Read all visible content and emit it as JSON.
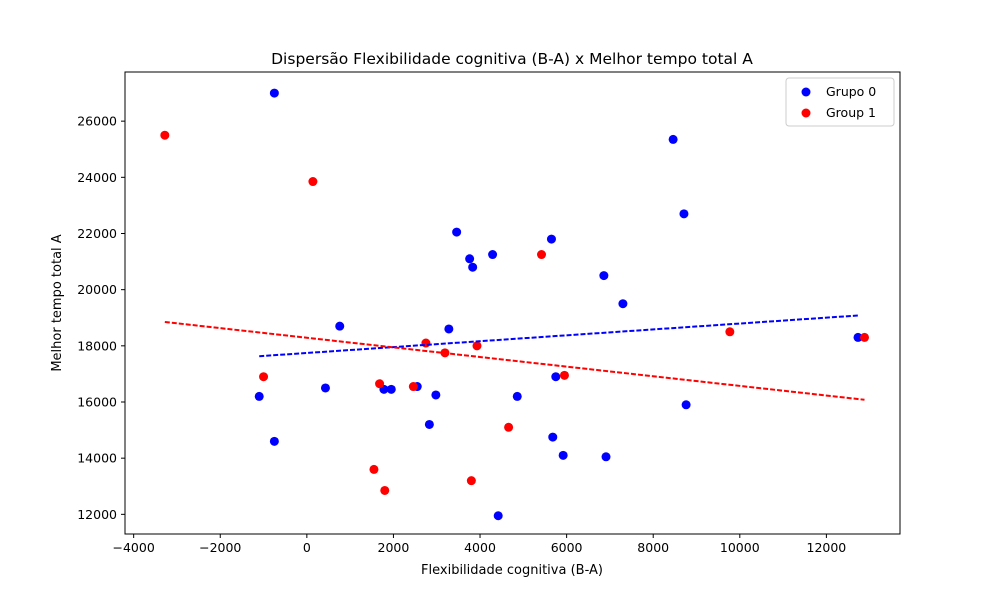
{
  "chart_data": {
    "type": "scatter",
    "title": "Dispersão Flexibilidade cognitiva (B-A) x Melhor tempo total A",
    "xlabel": "Flexibilidade cognitiva (B-A)",
    "ylabel": "Melhor tempo total A",
    "xlim": [
      -4200,
      13700
    ],
    "ylim": [
      11300,
      27750
    ],
    "xticks": [
      -4000,
      -2000,
      0,
      2000,
      4000,
      6000,
      8000,
      10000,
      12000
    ],
    "yticks": [
      12000,
      14000,
      16000,
      18000,
      20000,
      22000,
      24000,
      26000
    ],
    "grid": false,
    "legend_position": "top-right",
    "series": [
      {
        "name": "Grupo 0",
        "color": "#0000ff",
        "points": [
          [
            -750,
            27000
          ],
          [
            -1100,
            16200
          ],
          [
            -750,
            14600
          ],
          [
            430,
            16500
          ],
          [
            760,
            18700
          ],
          [
            1780,
            16450
          ],
          [
            1950,
            16450
          ],
          [
            2550,
            16550
          ],
          [
            2830,
            15200
          ],
          [
            2980,
            16250
          ],
          [
            3280,
            18600
          ],
          [
            3460,
            22050
          ],
          [
            3760,
            21100
          ],
          [
            3830,
            20800
          ],
          [
            4290,
            21250
          ],
          [
            4420,
            11950
          ],
          [
            4860,
            16200
          ],
          [
            5650,
            21800
          ],
          [
            5680,
            14750
          ],
          [
            5750,
            16900
          ],
          [
            5920,
            14100
          ],
          [
            6860,
            20500
          ],
          [
            6910,
            14050
          ],
          [
            7300,
            19500
          ],
          [
            8460,
            25350
          ],
          [
            8710,
            22700
          ],
          [
            8760,
            15900
          ],
          [
            12730,
            18300
          ]
        ],
        "trendline": {
          "x": [
            -1100,
            12730
          ],
          "y": [
            17630,
            19080
          ]
        }
      },
      {
        "name": "Group 1",
        "color": "#ff0000",
        "points": [
          [
            -3280,
            25500
          ],
          [
            -1000,
            16900
          ],
          [
            140,
            23850
          ],
          [
            1550,
            13600
          ],
          [
            1680,
            16650
          ],
          [
            1800,
            12850
          ],
          [
            2460,
            16550
          ],
          [
            2750,
            18100
          ],
          [
            3190,
            17750
          ],
          [
            3800,
            13200
          ],
          [
            3930,
            18000
          ],
          [
            4660,
            15100
          ],
          [
            5420,
            21250
          ],
          [
            5950,
            16950
          ],
          [
            9770,
            18500
          ],
          [
            12880,
            18300
          ]
        ],
        "trendline": {
          "x": [
            -3280,
            12880
          ],
          "y": [
            18850,
            16080
          ]
        }
      }
    ]
  }
}
